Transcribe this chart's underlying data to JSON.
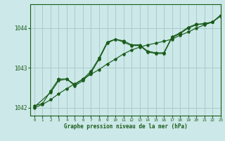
{
  "title": "Graphe pression niveau de la mer (hPa)",
  "bg_color": "#cce8e8",
  "grid_color": "#aacccc",
  "line_color": "#1a5c1a",
  "xlim": [
    -0.5,
    23
  ],
  "ylim": [
    1041.8,
    1044.6
  ],
  "yticks": [
    1042,
    1043,
    1044
  ],
  "xticks": [
    0,
    1,
    2,
    3,
    4,
    5,
    6,
    7,
    8,
    9,
    10,
    11,
    12,
    13,
    14,
    15,
    16,
    17,
    18,
    19,
    20,
    21,
    22,
    23
  ],
  "series_smooth": {
    "x": [
      0,
      1,
      2,
      3,
      4,
      5,
      6,
      7,
      8,
      9,
      10,
      11,
      12,
      13,
      14,
      15,
      16,
      17,
      18,
      19,
      20,
      21,
      22,
      23
    ],
    "y": [
      1042.0,
      1042.08,
      1042.2,
      1042.35,
      1042.48,
      1042.6,
      1042.72,
      1042.84,
      1042.96,
      1043.1,
      1043.22,
      1043.35,
      1043.45,
      1043.52,
      1043.58,
      1043.62,
      1043.67,
      1043.72,
      1043.82,
      1043.9,
      1044.0,
      1044.08,
      1044.15,
      1044.3
    ]
  },
  "series_peak": {
    "x": [
      0,
      1,
      2,
      3,
      4,
      5,
      6,
      7,
      8,
      9,
      10,
      11,
      12,
      13,
      14,
      15,
      16,
      17,
      18,
      19,
      20,
      21,
      22,
      23
    ],
    "y": [
      1042.05,
      1042.1,
      1042.42,
      1042.72,
      1042.72,
      1042.55,
      1042.68,
      1042.88,
      1043.22,
      1043.62,
      1043.72,
      1043.68,
      1043.58,
      1043.58,
      1043.42,
      1043.38,
      1043.38,
      1043.78,
      1043.88,
      1044.02,
      1044.1,
      1044.1,
      1044.15,
      1044.32
    ]
  },
  "series_mid": {
    "x": [
      0,
      2,
      3,
      4,
      5,
      6,
      7,
      8,
      9,
      10,
      11,
      12,
      13,
      14,
      15,
      16,
      17,
      18,
      19,
      20,
      21,
      22,
      23
    ],
    "y": [
      1042.02,
      1042.38,
      1042.68,
      1042.72,
      1042.58,
      1042.72,
      1042.92,
      1043.25,
      1043.65,
      1043.72,
      1043.65,
      1043.56,
      1043.56,
      1043.4,
      1043.36,
      1043.36,
      1043.76,
      1043.86,
      1044.0,
      1044.08,
      1044.12,
      1044.15,
      1044.32
    ]
  }
}
